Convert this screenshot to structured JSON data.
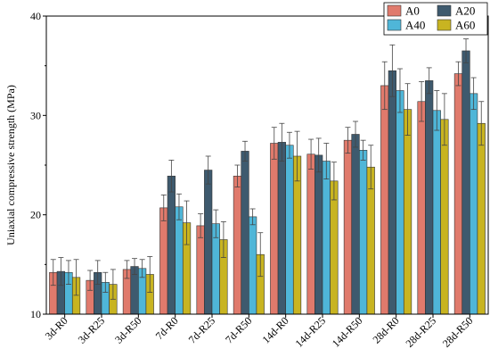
{
  "chart_data": {
    "type": "bar",
    "title": "",
    "xlabel": "",
    "ylabel": "Uniaxial compressive strength (MPa)",
    "ylim": [
      10,
      40
    ],
    "yticks": [
      10,
      20,
      30,
      40
    ],
    "grid": false,
    "legend_position": "top-right",
    "categories": [
      "3d-R0",
      "3d-R25",
      "3d-R50",
      "7d-R0",
      "7d-R25",
      "7d-R50",
      "14d-R0",
      "14d-R25",
      "14d-R50",
      "28d-R0",
      "28d-R25",
      "28d-R50"
    ],
    "series": [
      {
        "name": "A0",
        "color": "#e07a6c",
        "values": [
          14.2,
          13.4,
          14.5,
          20.7,
          18.9,
          23.9,
          27.2,
          26.1,
          27.5,
          33.0,
          31.4,
          34.2
        ],
        "errors": [
          1.3,
          1.0,
          0.9,
          1.3,
          1.2,
          1.1,
          1.6,
          1.5,
          1.3,
          2.4,
          2.0,
          1.2
        ]
      },
      {
        "name": "A20",
        "color": "#3e5a6e",
        "values": [
          14.3,
          14.2,
          14.8,
          23.9,
          24.5,
          26.4,
          27.3,
          26.0,
          28.1,
          34.5,
          33.5,
          36.5
        ],
        "errors": [
          1.4,
          1.2,
          0.8,
          1.6,
          1.4,
          1.0,
          1.9,
          1.7,
          1.3,
          2.6,
          1.3,
          1.2
        ]
      },
      {
        "name": "A40",
        "color": "#4fb6d8",
        "values": [
          14.2,
          13.2,
          14.6,
          20.8,
          19.1,
          19.8,
          27.0,
          25.4,
          26.5,
          32.5,
          30.5,
          32.2
        ],
        "errors": [
          1.2,
          1.0,
          0.9,
          1.3,
          1.4,
          0.8,
          1.3,
          1.8,
          1.0,
          2.2,
          2.0,
          1.6
        ]
      },
      {
        "name": "A60",
        "color": "#c8b421",
        "values": [
          13.7,
          13.0,
          14.0,
          19.2,
          17.5,
          16.0,
          25.9,
          23.4,
          24.8,
          30.6,
          29.6,
          29.2
        ],
        "errors": [
          1.8,
          1.5,
          1.8,
          2.2,
          1.8,
          2.2,
          2.5,
          1.9,
          2.2,
          2.6,
          2.6,
          2.2
        ]
      }
    ]
  }
}
